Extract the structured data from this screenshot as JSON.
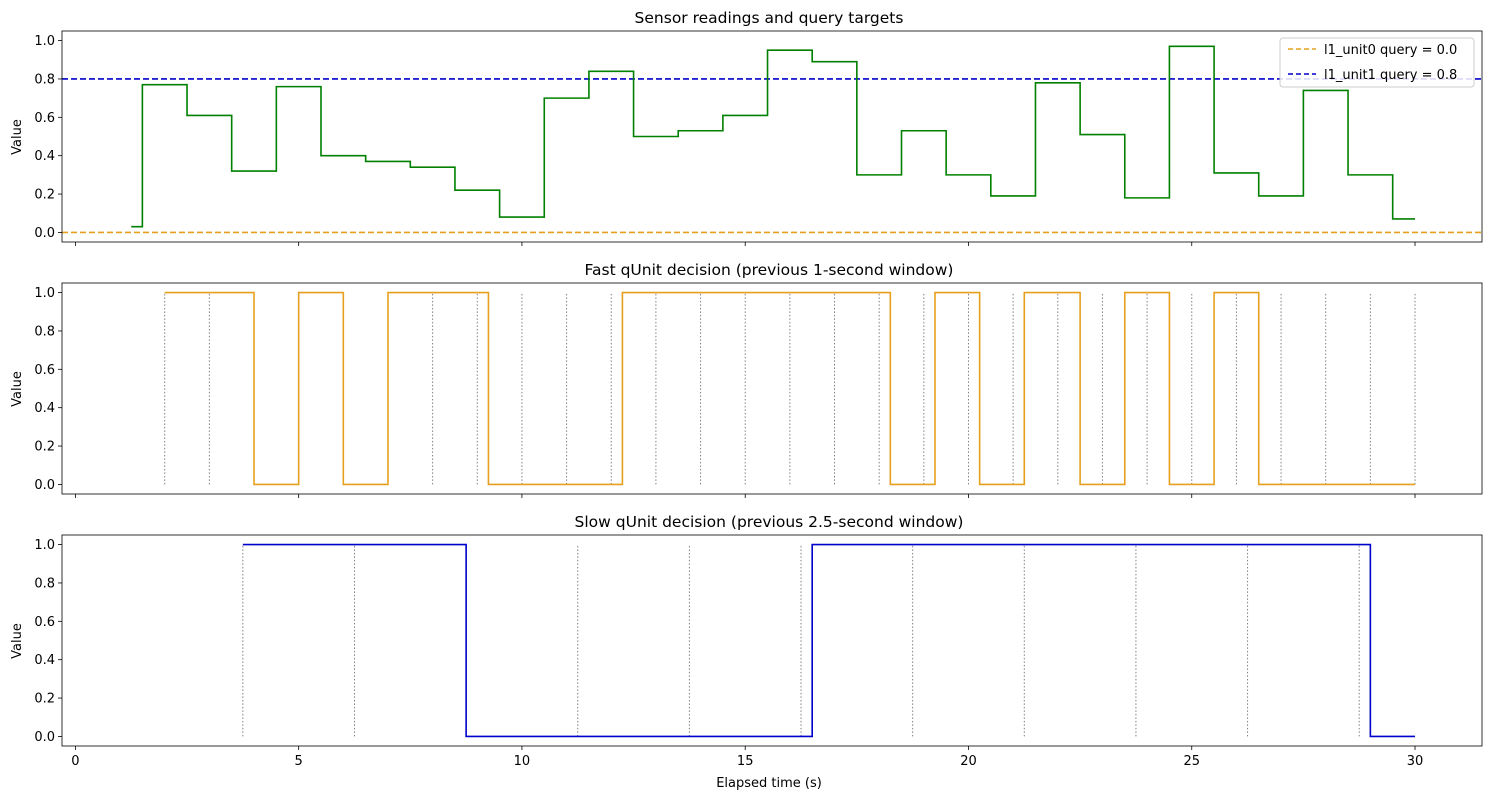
{
  "figure": {
    "xlabel": "Elapsed time (s)",
    "x_ticks": [
      0,
      5,
      10,
      15,
      20,
      25,
      30
    ],
    "xlim": [
      -0.3,
      31.5
    ]
  },
  "chart_data": [
    {
      "type": "line",
      "title": "Sensor readings and query targets",
      "ylabel": "Value",
      "ylim": [
        -0.05,
        1.05
      ],
      "y_ticks": [
        0.0,
        0.2,
        0.4,
        0.6,
        0.8,
        1.0
      ],
      "y_tick_labels": [
        "0.0",
        "0.2",
        "0.4",
        "0.6",
        "0.8",
        "1.0"
      ],
      "grid": false,
      "legend": "top-right",
      "series": [
        {
          "name": "",
          "color": "#008000",
          "style": "steps-post",
          "x": [
            1.25,
            1.5,
            2.5,
            3.5,
            4.5,
            5.5,
            6.5,
            7.5,
            8.5,
            9.5,
            10.5,
            11.5,
            12.5,
            13.5,
            14.5,
            15.5,
            16.5,
            17.5,
            18.5,
            19.5,
            20.5,
            21.5,
            22.5,
            23.5,
            24.5,
            25.5,
            26.5,
            27.5,
            28.5,
            29.5,
            30.0
          ],
          "y": [
            0.03,
            0.77,
            0.61,
            0.32,
            0.76,
            0.4,
            0.37,
            0.34,
            0.22,
            0.08,
            0.7,
            0.84,
            0.5,
            0.53,
            0.61,
            0.95,
            0.89,
            0.3,
            0.53,
            0.3,
            0.19,
            0.78,
            0.51,
            0.18,
            0.97,
            0.31,
            0.19,
            0.74,
            0.3,
            0.07,
            0.07
          ]
        }
      ],
      "hlines": [
        {
          "name": "l1_unit0 query = 0.0",
          "y": 0.0,
          "color": "#E6A01E",
          "dash": "dashed"
        },
        {
          "name": "l1_unit1 query = 0.8",
          "y": 0.8,
          "color": "#0000CC",
          "dash": "dashed"
        }
      ]
    },
    {
      "type": "line",
      "title": "Fast qUnit decision (previous 1-second window)",
      "ylabel": "Value",
      "ylim": [
        -0.05,
        1.05
      ],
      "y_ticks": [
        0.0,
        0.2,
        0.4,
        0.6,
        0.8,
        1.0
      ],
      "y_tick_labels": [
        "0.0",
        "0.2",
        "0.4",
        "0.6",
        "0.8",
        "1.0"
      ],
      "grid": false,
      "series": [
        {
          "name": "",
          "color": "#E6A01E",
          "style": "steps-post",
          "x": [
            2.0,
            4.0,
            5.0,
            6.0,
            7.0,
            9.25,
            12.25,
            18.25,
            19.25,
            20.25,
            21.25,
            22.5,
            23.5,
            24.5,
            25.5,
            26.5,
            30.0
          ],
          "y": [
            1,
            0,
            1,
            0,
            1,
            0,
            1,
            0,
            1,
            0,
            1,
            0,
            1,
            0,
            1,
            0,
            0
          ]
        }
      ],
      "vlines": [
        2,
        3,
        4,
        5,
        6,
        7,
        8,
        9,
        10,
        11,
        12,
        13,
        14,
        15,
        16,
        17,
        18,
        19,
        20,
        21,
        22,
        23,
        24,
        25,
        26,
        27,
        28,
        29,
        30
      ]
    },
    {
      "type": "line",
      "title": "Slow qUnit decision (previous 2.5-second window)",
      "ylabel": "Value",
      "ylim": [
        -0.05,
        1.05
      ],
      "y_ticks": [
        0.0,
        0.2,
        0.4,
        0.6,
        0.8,
        1.0
      ],
      "y_tick_labels": [
        "0.0",
        "0.2",
        "0.4",
        "0.6",
        "0.8",
        "1.0"
      ],
      "grid": false,
      "series": [
        {
          "name": "",
          "color": "#0000CC",
          "style": "steps-post",
          "x": [
            3.75,
            8.75,
            16.5,
            29.0,
            30.0
          ],
          "y": [
            1,
            0,
            1,
            0,
            0
          ]
        }
      ],
      "vlines": [
        3.75,
        6.25,
        8.75,
        11.25,
        13.75,
        16.25,
        18.75,
        21.25,
        23.75,
        26.25,
        28.75
      ]
    }
  ]
}
